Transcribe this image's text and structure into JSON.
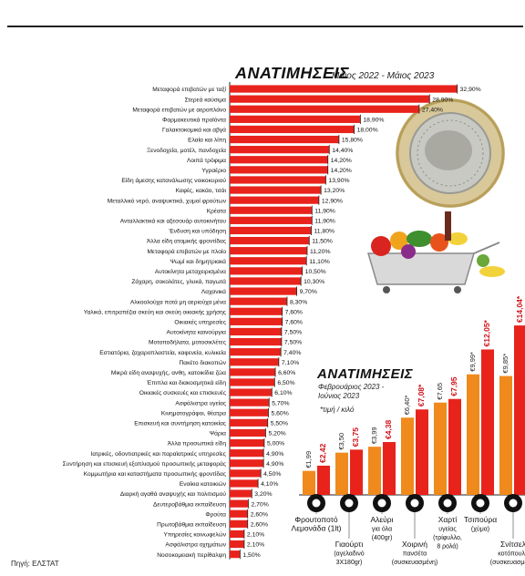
{
  "source_note": "Πηγή: ΕΛΣΤΑΤ",
  "chart_data": [
    {
      "type": "bar",
      "orientation": "horizontal",
      "title": "ΑΝΑΤΙΜΗΣΕΙΣ",
      "subtitle": "Μάιος 2022 - Μάιος 2023",
      "bar_color": "#e8231c",
      "categories": [
        "Μεταφορά επιβατών με ταξί",
        "Στερεά καύσιμα",
        "Μεταφορά επιβατών με αεροπλάνο",
        "Φαρμακευτικά προϊόντα",
        "Γαλακτοκομικά και αβγά",
        "Ελαία και λίπη",
        "Ξενοδοχεία, μοτέλ, πανδοχεία",
        "Λοιπά τρόφιμα",
        "Υγραέριο",
        "Είδη άμεσης κατανάλωσης νοικοκυριού",
        "Καφές, κακάο, τσάι",
        "Μεταλλικό νερό, αναψυκτικά, χυμοί φρούτων",
        "Κρέατα",
        "Ανταλλακτικά και αξεσουάρ αυτοκινήτου",
        "Ένδυση και υπόδηση",
        "Άλλα είδη ατομικής φροντίδας",
        "Μεταφορά επιβατών με πλοίο",
        "Ψωμί και δημητριακά",
        "Αυτοκίνητα μεταχειρισμένα",
        "Ζάχαρη, σοκολάτες, γλυκά, παγωτά",
        "Λαχανικά",
        "Αλκοολούχα ποτά μη αεριούχα μένα",
        "Υαλικά, επιτραπέζια σκεύη και σκεύη οικιακής χρήσης",
        "Οικιακές υπηρεσίες",
        "Αυτοκίνητα καινούργια",
        "Μοτοποδήλατα, μοτοσικλέτες",
        "Εστιατόρια, ζαχαροπλαστεία, καφενεία, κυλικεία",
        "Πακέτο διακοπών",
        "Μικρά είδη αναψυχής, ανθη, κατοικίδια ζώα",
        "Έπιπλα και διακοσμητικά είδη",
        "Οικιακές συσκευές και επισκευές",
        "Ασφάλιστρα υγείας",
        "Κινηματογράφοι, θέατρα",
        "Επισκευή και συντήρηση κατοικίας",
        "Ψάρια",
        "Άλλα προσωπικά είδη",
        "Ιατρικές, οδοντιατρικές και παραϊατρικές υπηρεσίες",
        "Συντήρηση και επισκευή εξοπλισμού προσωπικής μεταφοράς",
        "Κομμωτήρια και καταστήματα προσωπικής φροντίδας",
        "Ενοίκια κατοικιών",
        "Διαρκή αγαθά αναψυχής και πολιτισμού",
        "Δευτεροβάθμια εκπαίδευση",
        "Φρούτα",
        "Πρωτοβάθμια εκπαίδευση",
        "Υπηρεσίες κοινωφελών",
        "Ασφάλιστρα οχημάτων",
        "Νοσοκομειακή περίθαλψη"
      ],
      "values": [
        32.9,
        28.9,
        27.4,
        18.9,
        18.0,
        15.8,
        14.4,
        14.2,
        14.2,
        13.9,
        13.2,
        12.9,
        11.9,
        11.9,
        11.8,
        11.5,
        11.2,
        11.1,
        10.5,
        10.3,
        9.7,
        8.3,
        7.6,
        7.6,
        7.5,
        7.5,
        7.4,
        7.1,
        6.6,
        6.5,
        6.1,
        5.7,
        5.6,
        5.5,
        5.2,
        5.0,
        4.9,
        4.9,
        4.5,
        4.1,
        3.2,
        2.7,
        2.6,
        2.6,
        2.1,
        2.1,
        1.5
      ],
      "value_labels": [
        "32,90%",
        "28,90%",
        "27,40%",
        "18,90%",
        "18,00%",
        "15,80%",
        "14,40%",
        "14,20%",
        "14,20%",
        "13,90%",
        "13,20%",
        "12,90%",
        "11,90%",
        "11,90%",
        "11,80%",
        "11,50%",
        "11,20%",
        "11,10%",
        "10,50%",
        "10,30%",
        "9,70%",
        "8,30%",
        "7,60%",
        "7,60%",
        "7,50%",
        "7,50%",
        "7,40%",
        "7,10%",
        "6,60%",
        "6,50%",
        "6,10%",
        "5,70%",
        "5,60%",
        "5,50%",
        "5,20%",
        "5,00%",
        "4,90%",
        "4,90%",
        "4,50%",
        "4,10%",
        "3,20%",
        "2,70%",
        "2,60%",
        "2,60%",
        "2,10%",
        "2,10%",
        "1,50%"
      ],
      "xlim": [
        0,
        34
      ]
    },
    {
      "type": "bar",
      "orientation": "vertical",
      "title": "ΑΝΑΤΙΜΗΣΕΙΣ",
      "subtitle": "Φεβρουάριος 2023 - Ιούνιος 2023",
      "unit_note": "*τιμή / κιλό",
      "series": [
        {
          "name": "Φεβρουάριος 2023",
          "color": "#f08a1c"
        },
        {
          "name": "Ιούνιος 2023",
          "color": "#e8231c"
        }
      ],
      "products": [
        {
          "name": "Φρουτοποτό Λεμονάδα (1lt)",
          "name_lines": [
            "Φρουτοποτό",
            "Λεμονάδα (1lt)"
          ],
          "name_row": 0,
          "icon": "bottle-icon",
          "values": [
            1.99,
            2.42
          ],
          "labels": [
            "€1,99",
            "€2,42"
          ]
        },
        {
          "name": "Γιαούρτι (αγελαδινό 3X180gr)",
          "name_lines": [
            "Γιαούρτι",
            "(αγελαδινό",
            "3X180gr)"
          ],
          "name_row": 1,
          "icon": "yogurt-icon",
          "values": [
            3.5,
            3.75
          ],
          "labels": [
            "€3,50",
            "€3,75"
          ]
        },
        {
          "name": "Αλεύρι για όλα (400gr)",
          "name_lines": [
            "Αλεύρι",
            "για όλα",
            "(400gr)"
          ],
          "name_row": 0,
          "icon": "flour-icon",
          "values": [
            3.99,
            4.38
          ],
          "labels": [
            "€3,99",
            "€4,38"
          ]
        },
        {
          "name": "Χοιρινή πανσέτα (συσκευασμένη)",
          "name_lines": [
            "Χοιρινή",
            "πανσέτα",
            "(συσκευασμένη)"
          ],
          "name_row": 1,
          "icon": "pork-icon",
          "values": [
            6.4,
            7.08
          ],
          "labels": [
            "€6,40*",
            "€7,08*"
          ]
        },
        {
          "name": "Χαρτί υγείας (τρίφυλλο, 8 ρολά)",
          "name_lines": [
            "Χαρτί",
            "υγείας",
            "(τρίφυλλο,",
            "8 ρολά)"
          ],
          "name_row": 0,
          "icon": "toilet-paper-icon",
          "values": [
            7.65,
            7.95
          ],
          "labels": [
            "€7,65",
            "€7,95"
          ]
        },
        {
          "name": "Τσιπούρα (χύμα)",
          "name_lines": [
            "Τσιπούρα",
            "(χύμα)"
          ],
          "name_row": 0,
          "icon": "fish-icon",
          "values": [
            9.99,
            12.05
          ],
          "labels": [
            "€9,99*",
            "€12,05*"
          ]
        },
        {
          "name": "Σνίτσελ κοτόπουλο (συσκευασμένο)",
          "name_lines": [
            "Σνίτσελ",
            "κοτόπουλο",
            "(συσκευασμένο)"
          ],
          "name_row": 1,
          "icon": "chicken-icon",
          "values": [
            9.85,
            14.04
          ],
          "labels": [
            "€9,85*",
            "€14,04*"
          ]
        }
      ],
      "ylim": [
        0,
        14.5
      ]
    }
  ]
}
